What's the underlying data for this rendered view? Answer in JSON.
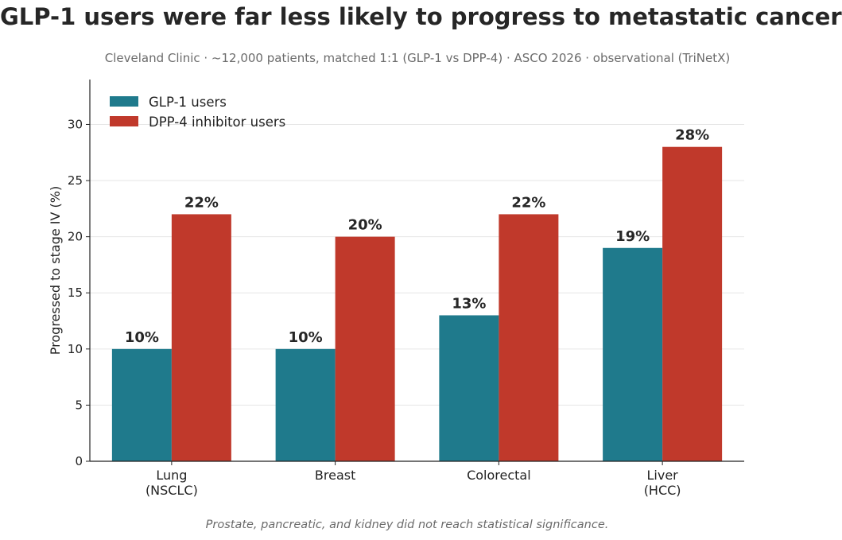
{
  "chart_data": {
    "type": "bar",
    "title": "GLP-1 users were far less likely to progress to metastatic cancer",
    "subtitle": "Cleveland Clinic  ·  ~12,000 patients, matched 1:1 (GLP-1 vs DPP-4)  ·  ASCO 2026  ·  observational (TriNetX)",
    "footnote": "Prostate, pancreatic, and kidney did not reach statistical significance.",
    "ylabel": "Progressed to stage IV (%)",
    "xlabel": "",
    "ylim": [
      0,
      34
    ],
    "yticks": [
      0,
      5,
      10,
      15,
      20,
      25,
      30
    ],
    "grid": "horizontal",
    "legend_position": "top-left",
    "categories": [
      [
        "Lung",
        "(NSCLC)"
      ],
      [
        "Breast"
      ],
      [
        "Colorectal"
      ],
      [
        "Liver",
        "(HCC)"
      ]
    ],
    "series": [
      {
        "name": "GLP-1 users",
        "color": "#1f7a8c",
        "values": [
          10,
          10,
          13,
          19
        ],
        "labels": [
          "10%",
          "10%",
          "13%",
          "19%"
        ]
      },
      {
        "name": "DPP-4 inhibitor users",
        "color": "#c0392b",
        "values": [
          22,
          20,
          22,
          28
        ],
        "labels": [
          "22%",
          "20%",
          "22%",
          "28%"
        ]
      }
    ]
  }
}
